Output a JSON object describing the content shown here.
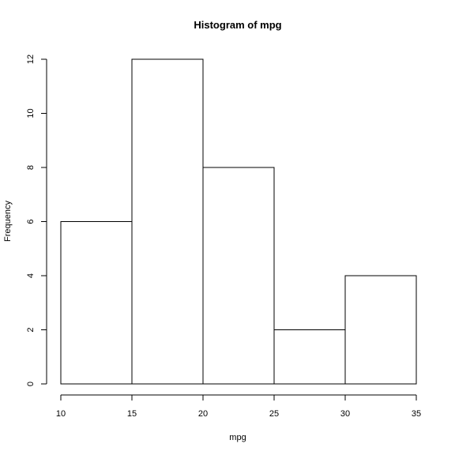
{
  "chart_data": {
    "type": "bar",
    "title": "Histogram of mpg",
    "xlabel": "mpg",
    "ylabel": "Frequency",
    "bins": [
      {
        "from": 10,
        "to": 15,
        "count": 6
      },
      {
        "from": 15,
        "to": 20,
        "count": 12
      },
      {
        "from": 20,
        "to": 25,
        "count": 8
      },
      {
        "from": 25,
        "to": 30,
        "count": 2
      },
      {
        "from": 30,
        "to": 35,
        "count": 4
      }
    ],
    "x_ticks": [
      "10",
      "15",
      "20",
      "25",
      "30",
      "35"
    ],
    "y_ticks": [
      "0",
      "2",
      "4",
      "6",
      "8",
      "10",
      "12"
    ],
    "xlim": [
      10,
      35
    ],
    "ylim": [
      0,
      12
    ],
    "grid": false,
    "colors": {
      "fill": "#ffffff",
      "stroke": "#000000"
    }
  }
}
